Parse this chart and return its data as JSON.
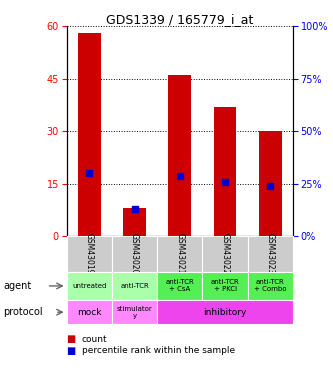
{
  "title": "GDS1339 / 165779_i_at",
  "samples": [
    "GSM43019",
    "GSM43020",
    "GSM43021",
    "GSM43022",
    "GSM43023"
  ],
  "counts": [
    58,
    8,
    46,
    37,
    30
  ],
  "percentile_ranks": [
    30,
    13,
    28.5,
    26,
    24
  ],
  "count_color": "#cc0000",
  "percentile_color": "#0000cc",
  "ylim_left": [
    0,
    60
  ],
  "ylim_right": [
    0,
    100
  ],
  "yticks_left": [
    0,
    15,
    30,
    45,
    60
  ],
  "yticks_right": [
    0,
    25,
    50,
    75,
    100
  ],
  "agent_labels": [
    "untreated",
    "anti-TCR",
    "anti-TCR\n+ CsA",
    "anti-TCR\n+ PKCi",
    "anti-TCR\n+ Combo"
  ],
  "agent_bg_light": "#aaffaa",
  "agent_bg_dark": "#55ee55",
  "protocol_pink": "#ff88ff",
  "protocol_magenta": "#ee44ee",
  "sample_bg_color": "#cccccc",
  "bar_width": 0.5
}
